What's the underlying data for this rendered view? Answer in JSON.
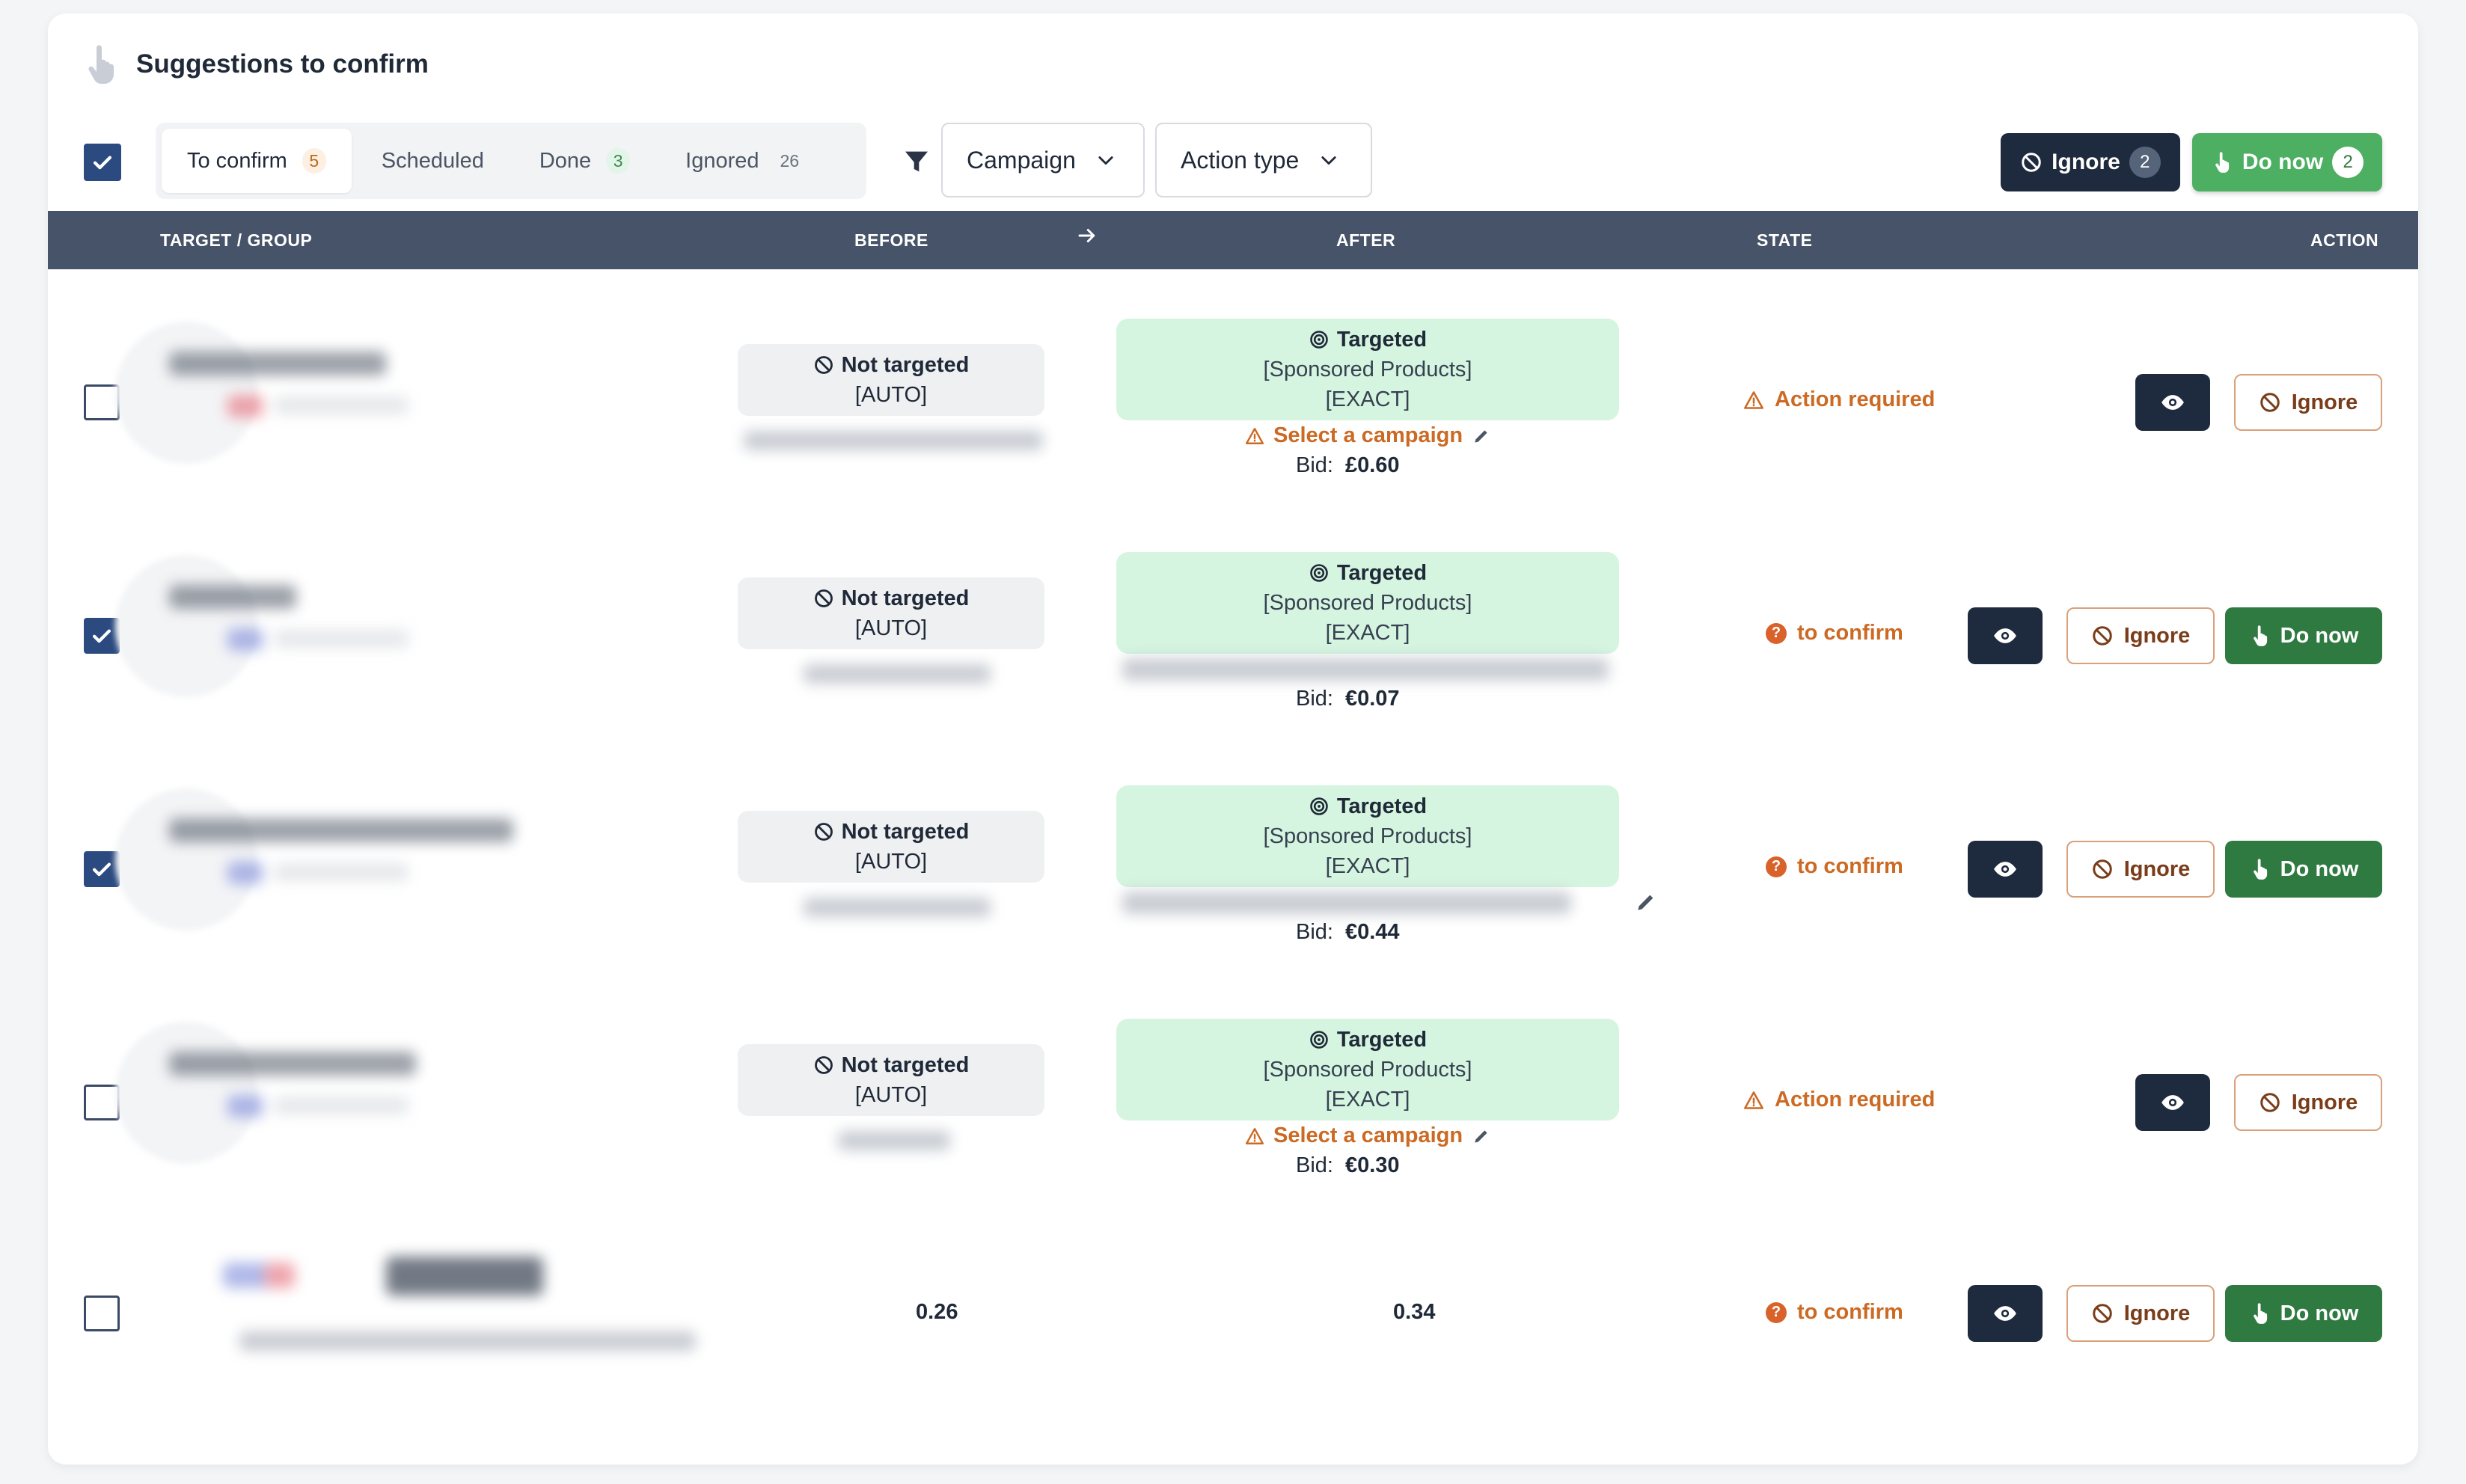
{
  "header": {
    "title": "Suggestions to confirm"
  },
  "tabs": [
    {
      "label": "To confirm",
      "count": "5"
    },
    {
      "label": "Scheduled",
      "count": ""
    },
    {
      "label": "Done",
      "count": "3"
    },
    {
      "label": "Ignored",
      "count": "26"
    }
  ],
  "filters": {
    "campaign": "Campaign",
    "action_type": "Action type"
  },
  "bulk": {
    "ignore_label": "Ignore",
    "ignore_count": "2",
    "donow_label": "Do now",
    "donow_count": "2"
  },
  "columns": {
    "target": "TARGET / GROUP",
    "before": "BEFORE",
    "after": "AFTER",
    "state": "STATE",
    "action": "ACTION"
  },
  "rows": [
    {
      "checked": false,
      "before_title": "Not targeted",
      "before_sub": "[AUTO]",
      "after_title": "Targeted",
      "after_l2": "[Sponsored Products]",
      "after_l3": "[EXACT]",
      "select_campaign": "Select a campaign",
      "bid_label": "Bid:",
      "bid_value": "£0.60",
      "state": "Action required",
      "state_kind": "warn",
      "ignore_label": "Ignore",
      "donow_label": ""
    },
    {
      "checked": true,
      "before_title": "Not targeted",
      "before_sub": "[AUTO]",
      "after_title": "Targeted",
      "after_l2": "[Sponsored Products]",
      "after_l3": "[EXACT]",
      "select_campaign": "",
      "bid_label": "Bid:",
      "bid_value": "€0.07",
      "state": "to confirm",
      "state_kind": "confirm",
      "ignore_label": "Ignore",
      "donow_label": "Do now"
    },
    {
      "checked": true,
      "before_title": "Not targeted",
      "before_sub": "[AUTO]",
      "after_title": "Targeted",
      "after_l2": "[Sponsored Products]",
      "after_l3": "[EXACT]",
      "select_campaign": "",
      "bid_label": "Bid:",
      "bid_value": "€0.44",
      "state": "to confirm",
      "state_kind": "confirm",
      "ignore_label": "Ignore",
      "donow_label": "Do now"
    },
    {
      "checked": false,
      "before_title": "Not targeted",
      "before_sub": "[AUTO]",
      "after_title": "Targeted",
      "after_l2": "[Sponsored Products]",
      "after_l3": "[EXACT]",
      "select_campaign": "Select a campaign",
      "bid_label": "Bid:",
      "bid_value": "€0.30",
      "state": "Action required",
      "state_kind": "warn",
      "ignore_label": "Ignore",
      "donow_label": ""
    },
    {
      "checked": false,
      "before_value": "0.26",
      "after_value": "0.34",
      "state": "to confirm",
      "state_kind": "confirm",
      "ignore_label": "Ignore",
      "donow_label": "Do now"
    }
  ],
  "colors": {
    "accent_green": "#4caf62",
    "dark": "#1e2a3d",
    "warn_orange": "#cc6a24",
    "targeted_bg": "#d5f5e0",
    "header_bar": "#475368"
  }
}
